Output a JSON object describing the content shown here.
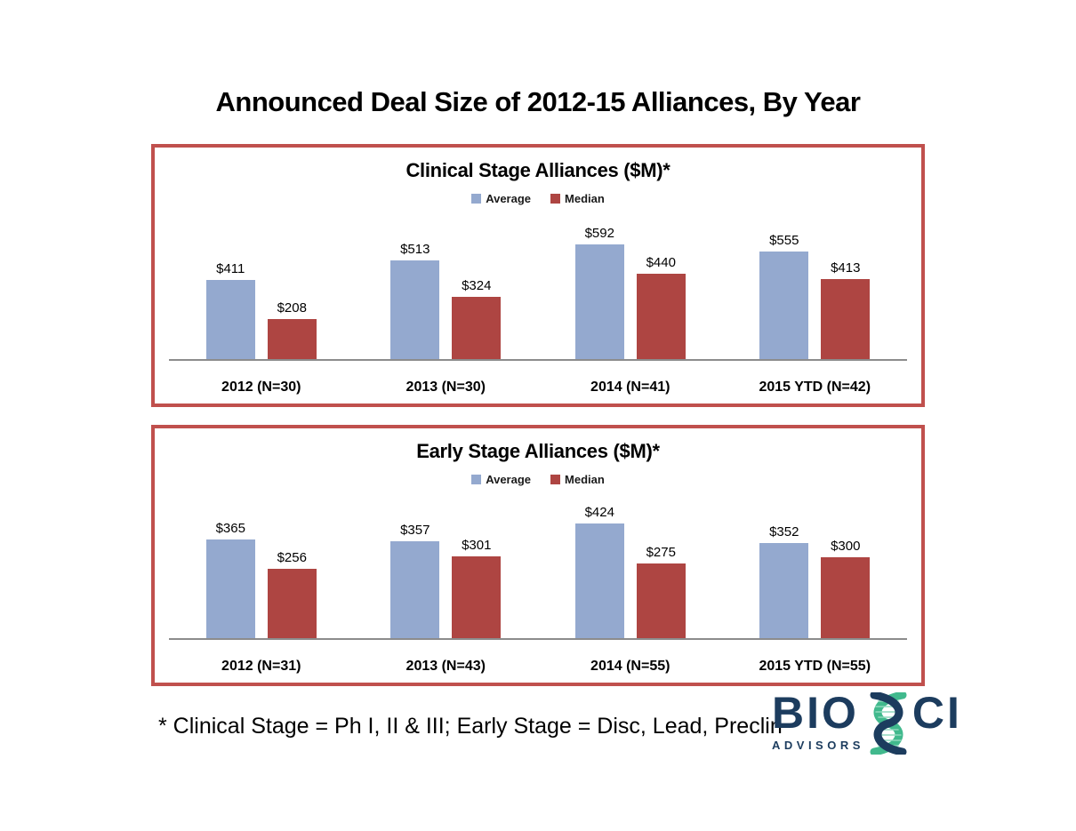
{
  "page": {
    "title": "Announced Deal Size of 2012-15 Alliances, By Year",
    "footnote": "* Clinical Stage = Ph I, II & III; Early Stage = Disc, Lead, Preclin"
  },
  "legend": {
    "average_label": "Average",
    "median_label": "Median"
  },
  "colors": {
    "average": "#94a9cf",
    "median": "#ae4542",
    "panel_border": "#c0504d",
    "axis": "#8c8c8c",
    "logo_navy": "#1c3c5e",
    "logo_green": "#41b98d",
    "logo_green_light": "#8fd9bd"
  },
  "logo": {
    "text_left": "BIO",
    "text_right": "CI",
    "subtext": "ADVISORS"
  },
  "chart_data": [
    {
      "type": "bar",
      "title": "Clinical Stage Alliances ($M)*",
      "categories": [
        "2012 (N=30)",
        "2013 (N=30)",
        "2014 (N=41)",
        "2015 YTD (N=42)"
      ],
      "series": [
        {
          "name": "Average",
          "values": [
            411,
            513,
            592,
            555
          ]
        },
        {
          "name": "Median",
          "values": [
            208,
            324,
            440,
            413
          ]
        }
      ],
      "value_prefix": "$",
      "ylim": [
        0,
        700
      ],
      "legend_position": "top",
      "grid": false
    },
    {
      "type": "bar",
      "title": "Early Stage Alliances ($M)*",
      "categories": [
        "2012 (N=31)",
        "2013 (N=43)",
        "2014 (N=55)",
        "2015 YTD (N=55)"
      ],
      "series": [
        {
          "name": "Average",
          "values": [
            365,
            357,
            424,
            352
          ]
        },
        {
          "name": "Median",
          "values": [
            256,
            301,
            275,
            300
          ]
        }
      ],
      "value_prefix": "$",
      "ylim": [
        0,
        500
      ],
      "legend_position": "top",
      "grid": false
    }
  ]
}
